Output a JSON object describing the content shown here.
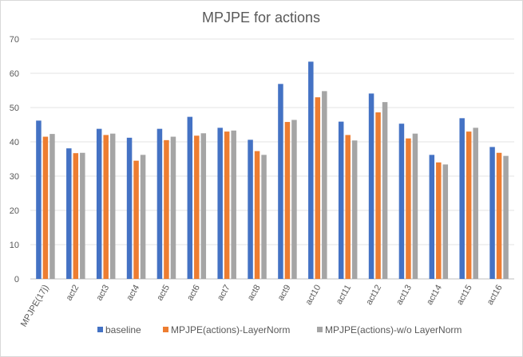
{
  "chart_data": {
    "type": "bar",
    "title": "MPJPE for actions",
    "xlabel": "",
    "ylabel": "",
    "ylim": [
      0,
      70
    ],
    "yticks": [
      0,
      10,
      20,
      30,
      40,
      50,
      60,
      70
    ],
    "grid": true,
    "legend_position": "bottom",
    "categories": [
      "MPJPE(17j)",
      "act2",
      "act3",
      "act4",
      "act5",
      "act6",
      "act7",
      "act8",
      "act9",
      "act10",
      "act11",
      "act12",
      "act13",
      "act14",
      "act15",
      "act16"
    ],
    "series": [
      {
        "name": "baseline",
        "color": "#4472C4",
        "values": [
          46.2,
          38.1,
          43.8,
          41.2,
          43.8,
          47.3,
          44.1,
          40.6,
          56.9,
          63.4,
          45.9,
          54.1,
          45.3,
          36.2,
          46.9,
          38.5
        ]
      },
      {
        "name": "MPJPE(actions)-LayerNorm",
        "color": "#ED7D31",
        "values": [
          41.5,
          36.7,
          42.0,
          34.5,
          40.5,
          41.8,
          43.0,
          37.3,
          45.8,
          53.0,
          42.0,
          48.6,
          41.0,
          34.0,
          43.0,
          36.8
        ]
      },
      {
        "name": "MPJPE(actions)-w/o LayerNorm",
        "color": "#A5A5A5",
        "values": [
          42.3,
          36.8,
          42.4,
          36.2,
          41.5,
          42.5,
          43.3,
          36.2,
          46.4,
          54.8,
          40.4,
          51.6,
          42.4,
          33.4,
          44.1,
          35.9
        ]
      }
    ]
  }
}
